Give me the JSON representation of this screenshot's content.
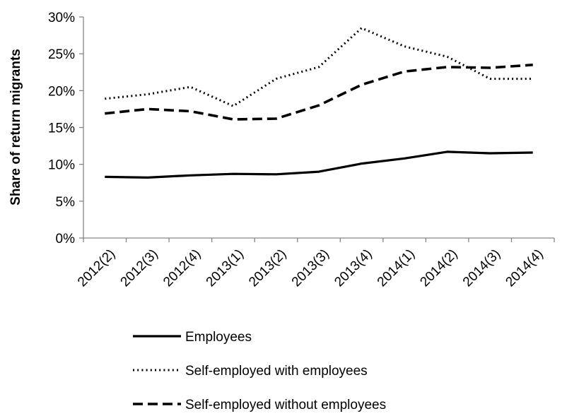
{
  "chart_data": {
    "type": "line",
    "title": "",
    "xlabel": "",
    "ylabel": "Share of return migrants",
    "categories": [
      "2012(2)",
      "2012(3)",
      "2012(4)",
      "2013(1)",
      "2013(2)",
      "2013(3)",
      "2013(4)",
      "2014(1)",
      "2014(2)",
      "2014(3)",
      "2014(4)"
    ],
    "ylim": [
      0,
      30
    ],
    "yticks": [
      "0%",
      "5%",
      "10%",
      "15%",
      "20%",
      "25%",
      "30%"
    ],
    "grid": false,
    "legend_position": "bottom",
    "series": [
      {
        "name": "Employees",
        "style": "solid",
        "values": [
          8.3,
          8.2,
          8.5,
          8.7,
          8.65,
          9.0,
          10.1,
          10.8,
          11.7,
          11.5,
          11.6
        ]
      },
      {
        "name": "Self-employed with employees",
        "style": "dotted",
        "values": [
          18.9,
          19.5,
          20.5,
          17.9,
          21.6,
          23.2,
          28.5,
          26.0,
          24.6,
          21.6,
          21.6
        ]
      },
      {
        "name": "Self-employed without employees",
        "style": "dashed",
        "values": [
          16.9,
          17.5,
          17.2,
          16.1,
          16.2,
          18.0,
          20.8,
          22.6,
          23.2,
          23.1,
          23.5
        ]
      }
    ],
    "colors": {
      "line": "#000000",
      "axis": "#868686"
    }
  }
}
